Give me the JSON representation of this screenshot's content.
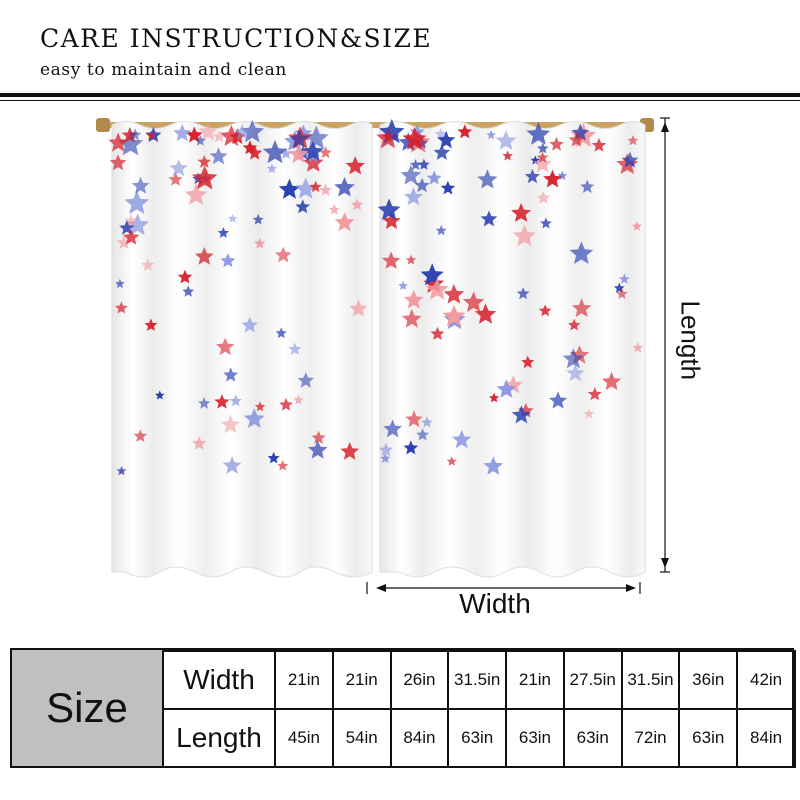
{
  "header": {
    "title": "CARE INSTRUCTION&SIZE",
    "subtitle": "easy to maintain and clean"
  },
  "dimensions": {
    "length_label": "Length",
    "width_label": "Width"
  },
  "colors": {
    "red": "#d6202a",
    "blue": "#2a3fb0",
    "light_red": "#f29aa0",
    "light_blue": "#8a98e0",
    "rod": "#b08a4a"
  },
  "size_table": {
    "label": "Size",
    "rows": [
      {
        "name": "Width",
        "values": [
          "21in",
          "21in",
          "26in",
          "31.5in",
          "21in",
          "27.5in",
          "31.5in",
          "36in",
          "42in"
        ]
      },
      {
        "name": "Length",
        "values": [
          "45in",
          "54in",
          "84in",
          "63in",
          "63in",
          "63in",
          "72in",
          "63in",
          "84in"
        ]
      }
    ]
  }
}
